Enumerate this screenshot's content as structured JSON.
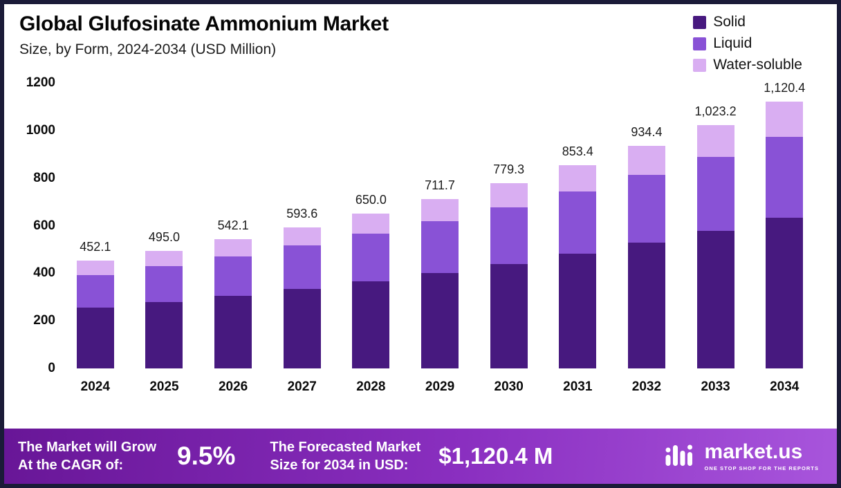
{
  "header": {
    "title": "Global Glufosinate Ammonium Market",
    "subtitle": "Size, by Form, 2024-2034 (USD Million)"
  },
  "legend": [
    {
      "label": "Solid",
      "color": "#47197f"
    },
    {
      "label": "Liquid",
      "color": "#8952d6"
    },
    {
      "label": "Water-soluble",
      "color": "#d9aef2"
    }
  ],
  "chart_data": {
    "type": "bar",
    "stacked": true,
    "title": "Global Glufosinate Ammonium Market Size, by Form, 2024-2034 (USD Million)",
    "categories": [
      "2024",
      "2025",
      "2026",
      "2027",
      "2028",
      "2029",
      "2030",
      "2031",
      "2032",
      "2033",
      "2034"
    ],
    "series": [
      {
        "name": "Solid",
        "color": "#47197f",
        "values": [
          255.4,
          279.7,
          306.3,
          335.4,
          367.3,
          402.1,
          440.3,
          482.2,
          528.0,
          578.1,
          633.0
        ]
      },
      {
        "name": "Liquid",
        "color": "#8952d6",
        "values": [
          137.9,
          151.0,
          165.3,
          181.1,
          198.2,
          217.1,
          237.7,
          260.3,
          285.0,
          312.1,
          341.8
        ]
      },
      {
        "name": "Water-soluble",
        "color": "#d9aef2",
        "values": [
          58.8,
          64.3,
          70.5,
          77.1,
          84.5,
          92.5,
          101.3,
          110.9,
          121.4,
          133.0,
          145.6
        ]
      }
    ],
    "totals": [
      452.1,
      495.0,
      542.1,
      593.6,
      650.0,
      711.7,
      779.3,
      853.4,
      934.4,
      1023.2,
      1120.4
    ],
    "total_labels": [
      "452.1",
      "495.0",
      "542.1",
      "593.6",
      "650.0",
      "711.7",
      "779.3",
      "853.4",
      "934.4",
      "1,023.2",
      "1,120.4"
    ],
    "xlabel": "",
    "ylabel": "",
    "ylim": [
      0,
      1200
    ],
    "yticks": [
      0,
      200,
      400,
      600,
      800,
      1000,
      1200
    ],
    "grid": false,
    "legend_position": "top-right"
  },
  "footer": {
    "cagr_label_line1": "The Market will Grow",
    "cagr_label_line2": "At the CAGR of:",
    "cagr_value": "9.5%",
    "forecast_label_line1": "The Forecasted Market",
    "forecast_label_line2": "Size for 2034 in USD:",
    "forecast_value": "$1,120.4 M",
    "brand_name": "market.us",
    "brand_tagline": "ONE STOP SHOP FOR THE REPORTS"
  }
}
